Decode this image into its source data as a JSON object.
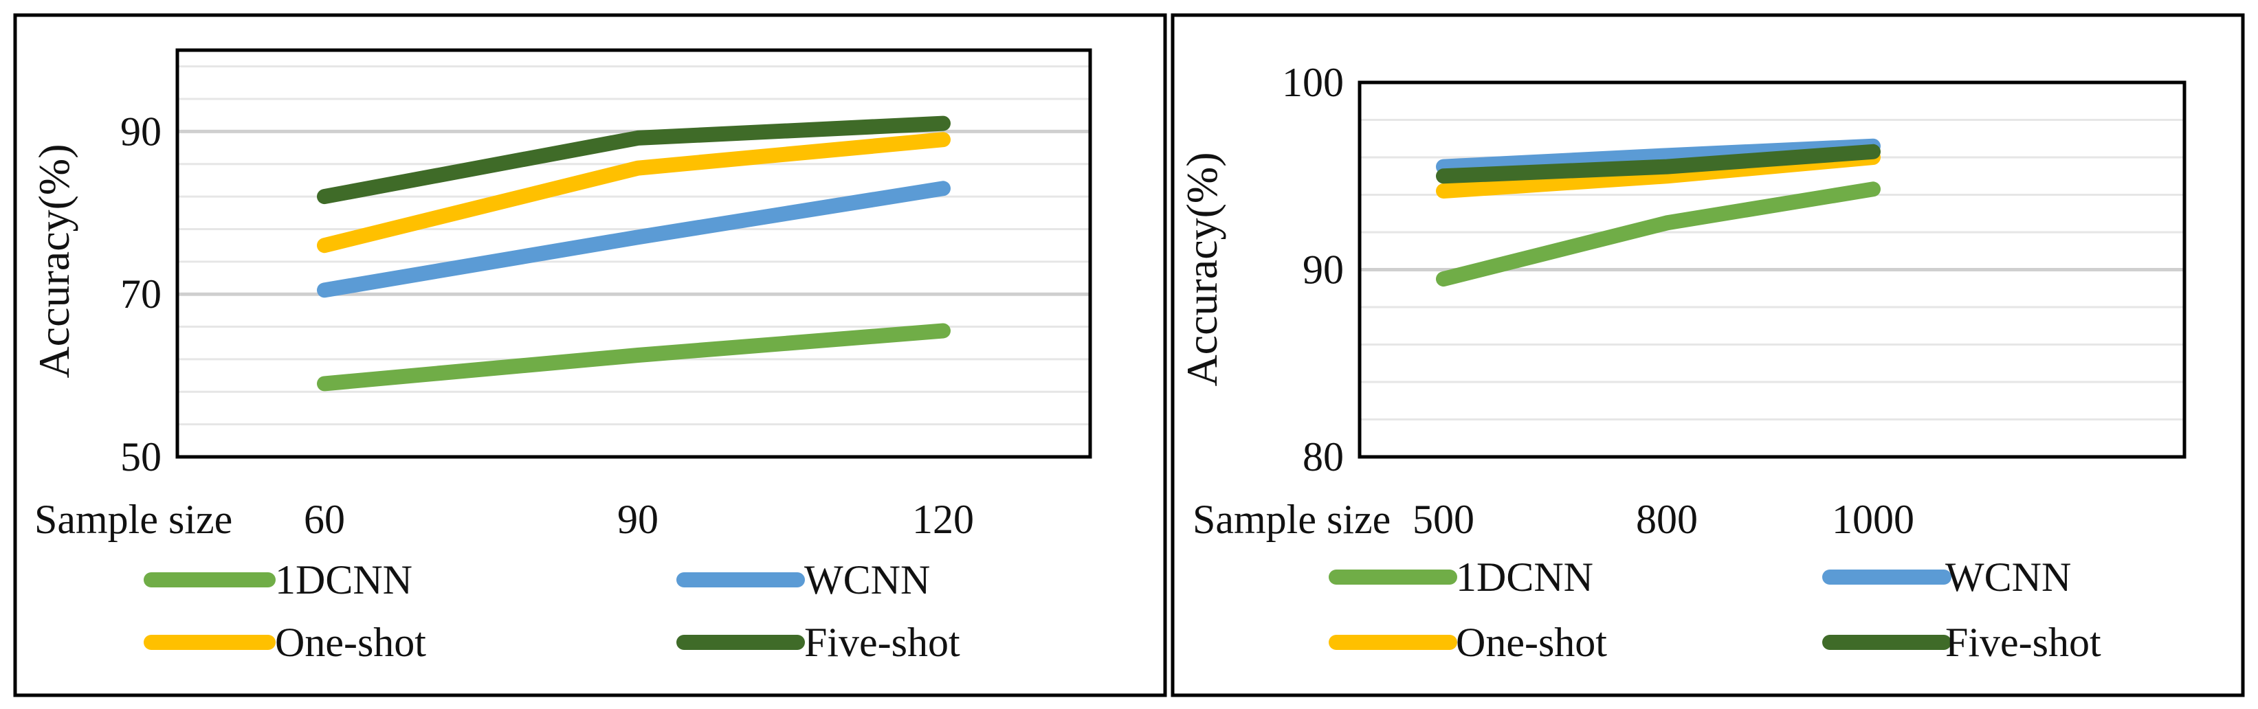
{
  "chart_data": [
    {
      "type": "line",
      "xlabel": "Sample size",
      "ylabel": "Accuracy(%)",
      "categories": [
        "60",
        "90",
        "120"
      ],
      "ylim": [
        50,
        100
      ],
      "yticks": [
        "50",
        "70",
        "90"
      ],
      "grid": true,
      "legend_position": "bottom",
      "series": [
        {
          "name": "1DCNN",
          "color": "#70ad47",
          "values": [
            59,
            62.5,
            65.5
          ]
        },
        {
          "name": "WCNN",
          "color": "#5b9bd5",
          "values": [
            70.5,
            77,
            83
          ]
        },
        {
          "name": "One-shot",
          "color": "#ffc000",
          "values": [
            76,
            85.5,
            89
          ]
        },
        {
          "name": "Five-shot",
          "color": "#3f6b28",
          "values": [
            82,
            89.2,
            91
          ]
        }
      ]
    },
    {
      "type": "line",
      "xlabel": "Sample size",
      "ylabel": "Accuracy(%)",
      "categories": [
        "500",
        "800",
        "1000"
      ],
      "ylim": [
        80,
        100
      ],
      "yticks": [
        "80",
        "90",
        "100"
      ],
      "grid": true,
      "legend_position": "bottom",
      "series": [
        {
          "name": "1DCNN",
          "color": "#70ad47",
          "values": [
            89.5,
            92.5,
            94.3
          ]
        },
        {
          "name": "WCNN",
          "color": "#5b9bd5",
          "values": [
            95.5,
            96.1,
            96.6
          ]
        },
        {
          "name": "One-shot",
          "color": "#ffc000",
          "values": [
            94.2,
            95,
            96
          ]
        },
        {
          "name": "Five-shot",
          "color": "#3f6b28",
          "values": [
            95,
            95.5,
            96.3
          ]
        }
      ]
    }
  ]
}
